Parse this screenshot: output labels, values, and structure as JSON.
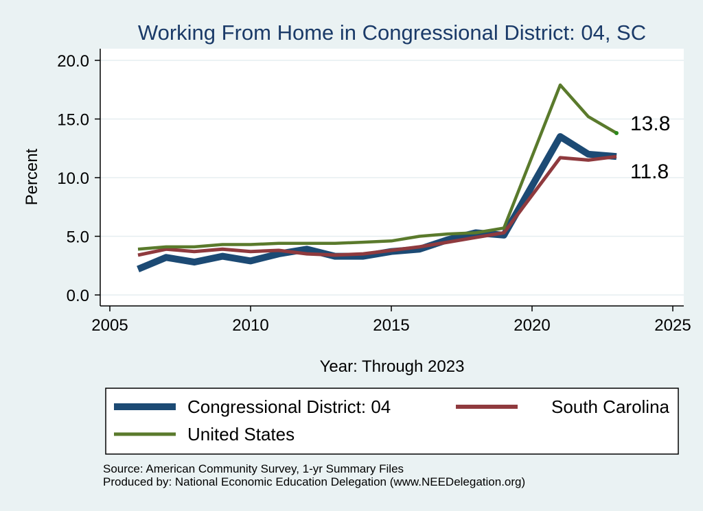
{
  "chart_data": {
    "type": "line",
    "title": "Working From Home in Congressional District: 04, SC",
    "xlabel": "Year: Through 2023",
    "ylabel": "Percent",
    "xlim": [
      2005,
      2025
    ],
    "ylim": [
      0,
      20
    ],
    "xticks": [
      "2005",
      "2010",
      "2015",
      "2020",
      "2025"
    ],
    "yticks": [
      "0.0",
      "5.0",
      "10.0",
      "15.0",
      "20.0"
    ],
    "grid": true,
    "legend_position": "bottom",
    "x": [
      2006,
      2007,
      2008,
      2009,
      2010,
      2011,
      2012,
      2013,
      2014,
      2015,
      2016,
      2017,
      2018,
      2019,
      2021,
      2022,
      2023
    ],
    "series": [
      {
        "name": "Congressional District: 04",
        "color": "#1c4a74",
        "values": [
          2.2,
          3.2,
          2.8,
          3.3,
          2.9,
          3.5,
          3.9,
          3.3,
          3.3,
          3.7,
          3.9,
          4.7,
          5.3,
          5.1,
          13.5,
          12.0,
          11.8
        ]
      },
      {
        "name": "South Carolina",
        "color": "#8f3a3e",
        "values": [
          3.4,
          3.9,
          3.7,
          3.9,
          3.7,
          3.8,
          3.5,
          3.4,
          3.5,
          3.8,
          4.1,
          4.5,
          4.9,
          5.3,
          11.7,
          11.5,
          11.8
        ]
      },
      {
        "name": "United States",
        "color": "#5a7a2c",
        "values": [
          3.9,
          4.1,
          4.1,
          4.3,
          4.3,
          4.4,
          4.4,
          4.4,
          4.5,
          4.6,
          5.0,
          5.2,
          5.3,
          5.7,
          17.9,
          15.2,
          13.8
        ]
      }
    ],
    "annotations": [
      {
        "text": "13.8",
        "series": "United States",
        "x": 2023,
        "y": 13.8
      },
      {
        "text": "11.8",
        "series": "South Carolina",
        "x": 2023,
        "y": 11.8
      }
    ]
  },
  "footer": {
    "source": "Source: American Community Survey, 1-yr Summary Files",
    "produced": "Produced by: National Economic Education Delegation (www.NEEDelegation.org)"
  }
}
